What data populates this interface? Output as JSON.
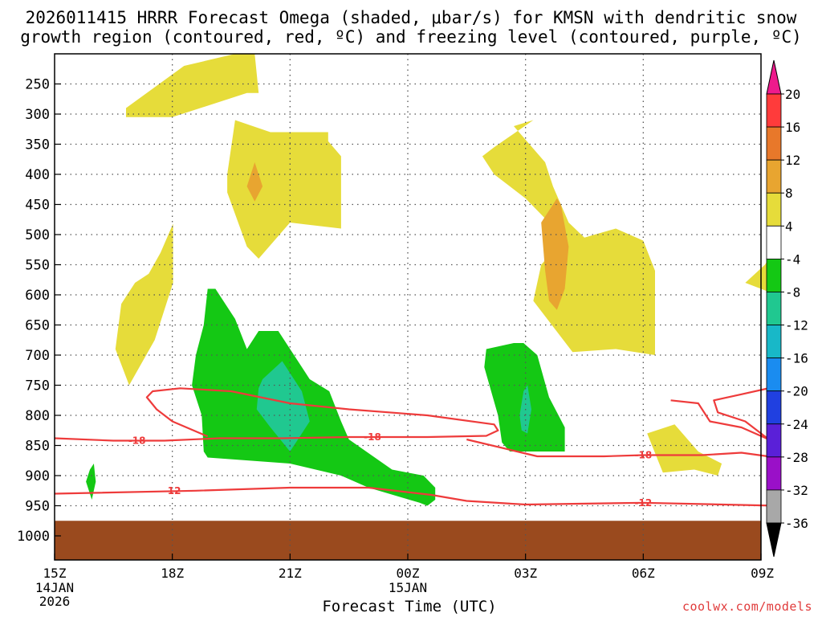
{
  "chart_data": {
    "type": "heatmap",
    "title_line1": "2026011415 HRRR Forecast Omega (shaded, μbar/s) for KMSN with dendritic snow",
    "title_line2": "growth region (contoured, red, ºC) and freezing level (contoured, purple, ºC)",
    "xlabel": "Forecast Time (UTC)",
    "ylabel": "Pressure (hPa)",
    "credit": "coolwx.com/models",
    "x_ticks": [
      {
        "h": 0,
        "l1": "15Z",
        "l2": "14JAN",
        "l3": "2026"
      },
      {
        "h": 3,
        "l1": "18Z",
        "l2": "",
        "l3": ""
      },
      {
        "h": 6,
        "l1": "21Z",
        "l2": "",
        "l3": ""
      },
      {
        "h": 9,
        "l1": "00Z",
        "l2": "15JAN",
        "l3": ""
      },
      {
        "h": 12,
        "l1": "03Z",
        "l2": "",
        "l3": ""
      },
      {
        "h": 15,
        "l1": "06Z",
        "l2": "",
        "l3": ""
      },
      {
        "h": 18,
        "l1": "09Z",
        "l2": "",
        "l3": ""
      }
    ],
    "x_range_hours": [
      0,
      18
    ],
    "y_ticks": [
      250,
      300,
      350,
      400,
      450,
      500,
      550,
      600,
      650,
      700,
      750,
      800,
      850,
      900,
      950,
      1000
    ],
    "y_range_hpa": [
      1040,
      200
    ],
    "colorbar_levels": [
      20,
      16,
      12,
      8,
      4,
      -4,
      -8,
      -12,
      -16,
      -20,
      -24,
      -28,
      -32,
      -36
    ],
    "colorbar_colors": [
      "#ff3b3b",
      "#e8782a",
      "#e8a530",
      "#e6dc3a",
      "#ffffff",
      "#14c814",
      "#20c890",
      "#18b8c8",
      "#1a8cf0",
      "#2040e0",
      "#5a20d8",
      "#9a10c8",
      "#a8a8a8"
    ],
    "colorbar_top_arrow": "#ee1a8c",
    "colorbar_bottom_arrow": "#000000",
    "surface_color": "#9a4a1e",
    "regions": [
      {
        "level": 4,
        "color": "#e6dc3a",
        "points": [
          [
            1.82,
            305
          ],
          [
            3.0,
            305
          ],
          [
            4.9,
            265
          ],
          [
            5.2,
            265
          ],
          [
            5.1,
            200
          ],
          [
            4.6,
            200
          ],
          [
            3.3,
            220
          ],
          [
            1.82,
            290
          ]
        ]
      },
      {
        "level": 4,
        "color": "#e6dc3a",
        "points": [
          [
            4.6,
            310
          ],
          [
            4.4,
            400
          ],
          [
            4.4,
            430
          ],
          [
            4.9,
            520
          ],
          [
            5.2,
            540
          ],
          [
            6.0,
            480
          ],
          [
            7.3,
            490
          ],
          [
            7.3,
            370
          ],
          [
            6.97,
            345
          ],
          [
            6.97,
            330
          ],
          [
            5.5,
            330
          ]
        ]
      },
      {
        "level": 8,
        "color": "#e8a530",
        "points": [
          [
            5.1,
            380
          ],
          [
            4.9,
            420
          ],
          [
            5.1,
            445
          ],
          [
            5.3,
            420
          ]
        ]
      },
      {
        "level": 4,
        "color": "#e6dc3a",
        "points": [
          [
            1.55,
            690
          ],
          [
            1.9,
            750
          ],
          [
            2.55,
            675
          ],
          [
            3.02,
            580
          ],
          [
            3.02,
            482
          ],
          [
            2.7,
            530
          ],
          [
            2.4,
            565
          ],
          [
            2.05,
            580
          ],
          [
            1.7,
            615
          ]
        ]
      },
      {
        "level": 4,
        "color": "#e6dc3a",
        "points": [
          [
            12.2,
            310
          ],
          [
            11.2,
            355
          ],
          [
            10.9,
            370
          ],
          [
            11.2,
            400
          ],
          [
            12.0,
            440
          ],
          [
            12.6,
            480
          ],
          [
            12.8,
            520
          ],
          [
            12.4,
            550
          ],
          [
            12.2,
            610
          ],
          [
            13.2,
            695
          ],
          [
            14.3,
            690
          ],
          [
            15.3,
            700
          ],
          [
            15.3,
            560
          ],
          [
            15.0,
            510
          ],
          [
            14.3,
            490
          ],
          [
            13.5,
            505
          ],
          [
            13.1,
            480
          ],
          [
            12.7,
            420
          ],
          [
            12.5,
            380
          ],
          [
            11.7,
            320
          ]
        ]
      },
      {
        "level": 8,
        "color": "#e8a530",
        "points": [
          [
            12.8,
            440
          ],
          [
            12.4,
            480
          ],
          [
            12.5,
            560
          ],
          [
            12.6,
            610
          ],
          [
            12.8,
            625
          ],
          [
            13.0,
            590
          ],
          [
            13.1,
            520
          ],
          [
            12.9,
            450
          ]
        ]
      },
      {
        "level": 4,
        "color": "#e6dc3a",
        "points": [
          [
            15.1,
            830
          ],
          [
            15.5,
            895
          ],
          [
            16.3,
            890
          ],
          [
            16.9,
            900
          ],
          [
            17.0,
            880
          ],
          [
            16.4,
            860
          ],
          [
            15.8,
            815
          ]
        ]
      },
      {
        "level": 4,
        "color": "#e6dc3a",
        "points": [
          [
            17.6,
            580
          ],
          [
            18.4,
            600
          ],
          [
            18.4,
            520
          ],
          [
            18.1,
            550
          ]
        ]
      },
      {
        "level": -4,
        "color": "#14c814",
        "points": [
          [
            3.9,
            590
          ],
          [
            3.8,
            650
          ],
          [
            3.6,
            700
          ],
          [
            3.5,
            750
          ],
          [
            3.75,
            800
          ],
          [
            3.8,
            860
          ],
          [
            3.9,
            870
          ],
          [
            6.0,
            880
          ],
          [
            7.3,
            900
          ],
          [
            8.0,
            920
          ],
          [
            9.3,
            945
          ],
          [
            9.5,
            950
          ],
          [
            9.7,
            940
          ],
          [
            9.7,
            920
          ],
          [
            9.4,
            900
          ],
          [
            8.6,
            890
          ],
          [
            7.5,
            840
          ],
          [
            7.3,
            810
          ],
          [
            7.0,
            760
          ],
          [
            6.5,
            740
          ],
          [
            5.7,
            660
          ],
          [
            5.2,
            660
          ],
          [
            4.9,
            690
          ],
          [
            4.6,
            640
          ],
          [
            4.3,
            610
          ],
          [
            4.1,
            590
          ]
        ]
      },
      {
        "level": -8,
        "color": "#20c890",
        "points": [
          [
            5.2,
            755
          ],
          [
            5.15,
            790
          ],
          [
            5.5,
            820
          ],
          [
            6.0,
            860
          ],
          [
            6.5,
            810
          ],
          [
            6.3,
            760
          ],
          [
            5.8,
            710
          ],
          [
            5.3,
            740
          ]
        ]
      },
      {
        "level": -4,
        "color": "#14c814",
        "points": [
          [
            11.0,
            690
          ],
          [
            10.95,
            720
          ],
          [
            11.3,
            800
          ],
          [
            11.4,
            845
          ],
          [
            11.6,
            860
          ],
          [
            13.0,
            860
          ],
          [
            13.0,
            820
          ],
          [
            12.6,
            770
          ],
          [
            12.3,
            700
          ],
          [
            11.95,
            680
          ],
          [
            11.7,
            680
          ]
        ]
      },
      {
        "level": -8,
        "color": "#20c890",
        "points": [
          [
            11.95,
            760
          ],
          [
            11.85,
            800
          ],
          [
            11.9,
            825
          ],
          [
            12.05,
            830
          ],
          [
            12.15,
            790
          ],
          [
            12.05,
            750
          ]
        ]
      },
      {
        "level": -4,
        "color": "#14c814",
        "points": [
          [
            0.9,
            890
          ],
          [
            0.8,
            910
          ],
          [
            0.95,
            940
          ],
          [
            1.05,
            910
          ],
          [
            1.0,
            880
          ]
        ]
      }
    ],
    "dgz_contours": [
      {
        "label": "-18",
        "label_at": [
          2.1,
          842
        ],
        "points": [
          [
            0.0,
            838
          ],
          [
            1.5,
            842
          ],
          [
            2.8,
            842
          ],
          [
            4.2,
            838
          ],
          [
            5.8,
            838
          ],
          [
            7.5,
            836
          ],
          [
            9.5,
            836
          ],
          [
            11.0,
            834
          ],
          [
            11.3,
            825
          ],
          [
            11.2,
            815
          ],
          [
            9.5,
            800
          ],
          [
            7.5,
            790
          ],
          [
            6.0,
            780
          ],
          [
            4.5,
            760
          ],
          [
            3.2,
            755
          ],
          [
            2.5,
            760
          ],
          [
            2.35,
            770
          ],
          [
            2.6,
            790
          ],
          [
            3.0,
            810
          ],
          [
            3.9,
            835
          ]
        ]
      },
      {
        "label": "-18",
        "label_at": [
          8.1,
          836
        ],
        "points": []
      },
      {
        "label": "-18",
        "label_at": [
          15.0,
          866
        ],
        "points": [
          [
            10.5,
            840
          ],
          [
            12.3,
            868
          ],
          [
            14.0,
            868
          ],
          [
            15.0,
            866
          ],
          [
            16.5,
            866
          ],
          [
            17.5,
            862
          ],
          [
            18.4,
            870
          ]
        ]
      },
      {
        "label": "",
        "label_at": [
          0,
          0
        ],
        "points": [
          [
            15.7,
            775
          ],
          [
            16.4,
            780
          ],
          [
            16.7,
            810
          ],
          [
            17.5,
            820
          ],
          [
            18.2,
            840
          ],
          [
            18.0,
            830
          ],
          [
            17.6,
            810
          ],
          [
            16.9,
            795
          ],
          [
            16.8,
            775
          ],
          [
            17.5,
            765
          ],
          [
            18.4,
            752
          ]
        ]
      },
      {
        "label": "-12",
        "label_at": [
          3.0,
          925
        ],
        "points": [
          [
            0.0,
            930
          ],
          [
            3.6,
            925
          ],
          [
            6.0,
            920
          ],
          [
            8.0,
            920
          ],
          [
            9.6,
            932
          ],
          [
            10.5,
            942
          ],
          [
            12.0,
            948
          ],
          [
            15.0,
            945
          ],
          [
            18.4,
            950
          ]
        ]
      },
      {
        "label": "-12",
        "label_at": [
          15.0,
          945
        ],
        "points": []
      }
    ]
  }
}
